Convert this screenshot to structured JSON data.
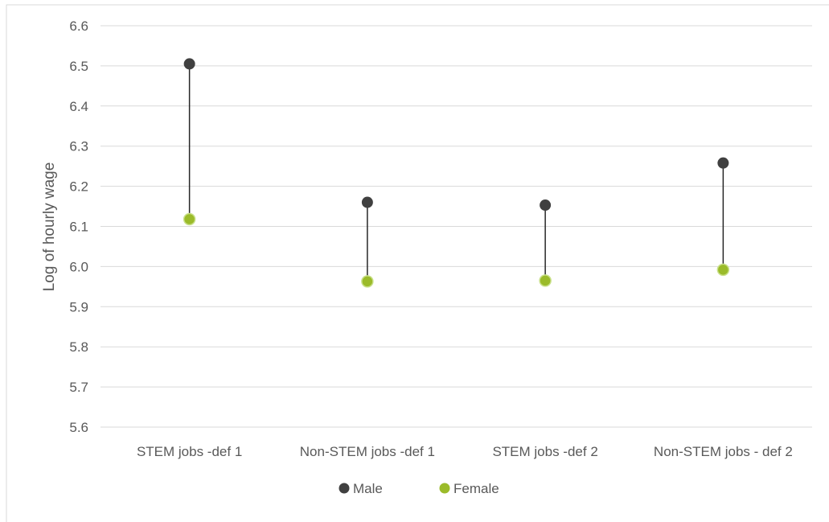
{
  "chart_data": {
    "type": "scatter",
    "subtype": "dumbbell",
    "title": "",
    "xlabel": "",
    "ylabel": "Log of hourly wage",
    "ylim": [
      5.6,
      6.6
    ],
    "yticks": [
      "6.6",
      "6.5",
      "6.4",
      "6.3",
      "6.2",
      "6.1",
      "6.0",
      "5.9",
      "5.8",
      "5.7",
      "5.6"
    ],
    "grid": true,
    "legend_position": "bottom",
    "categories": [
      "STEM jobs -def 1",
      "Non-STEM jobs  -def 1",
      "STEM jobs -def 2",
      "Non-STEM jobs - def 2"
    ],
    "series": [
      {
        "name": "Male",
        "values": [
          6.505,
          6.16,
          6.153,
          6.258
        ],
        "color": "#404040"
      },
      {
        "name": "Female",
        "values": [
          6.118,
          5.963,
          5.965,
          5.992
        ],
        "color": "#9BBB2A"
      }
    ]
  }
}
